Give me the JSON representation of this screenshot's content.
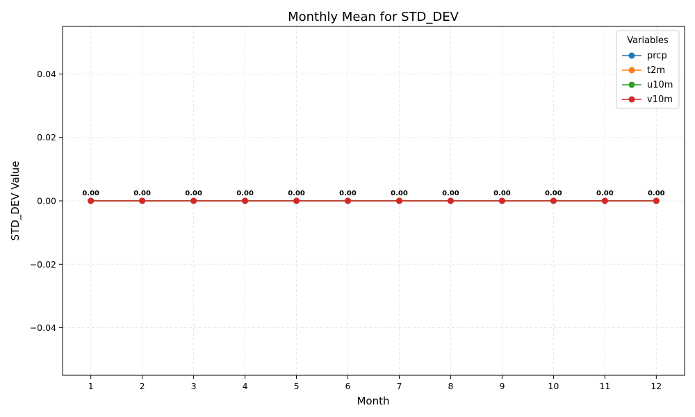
{
  "chart_data": {
    "type": "line",
    "title": "Monthly Mean for STD_DEV",
    "xlabel": "Month",
    "ylabel": "STD_DEV Value",
    "x": [
      1,
      2,
      3,
      4,
      5,
      6,
      7,
      8,
      9,
      10,
      11,
      12
    ],
    "x_tick_labels": [
      "1",
      "2",
      "3",
      "4",
      "5",
      "6",
      "7",
      "8",
      "9",
      "10",
      "11",
      "12"
    ],
    "xlim": [
      0.45,
      12.55
    ],
    "ylim": [
      -0.055,
      0.055
    ],
    "y_ticks": [
      -0.04,
      -0.02,
      0.0,
      0.02,
      0.04
    ],
    "y_tick_labels": [
      "−0.04",
      "−0.02",
      "0.00",
      "0.02",
      "0.04"
    ],
    "grid": true,
    "legend": {
      "title": "Variables",
      "position": "top-right"
    },
    "series": [
      {
        "name": "prcp",
        "color": "#1f77b4",
        "values": [
          0,
          0,
          0,
          0,
          0,
          0,
          0,
          0,
          0,
          0,
          0,
          0
        ]
      },
      {
        "name": "t2m",
        "color": "#ff7f0e",
        "values": [
          0,
          0,
          0,
          0,
          0,
          0,
          0,
          0,
          0,
          0,
          0,
          0
        ]
      },
      {
        "name": "u10m",
        "color": "#2ca02c",
        "values": [
          0,
          0,
          0,
          0,
          0,
          0,
          0,
          0,
          0,
          0,
          0,
          0
        ]
      },
      {
        "name": "v10m",
        "color": "#d62728",
        "values": [
          0,
          0,
          0,
          0,
          0,
          0,
          0,
          0,
          0,
          0,
          0,
          0
        ]
      }
    ],
    "data_labels": [
      "0.00",
      "0.00",
      "0.00",
      "0.00",
      "0.00",
      "0.00",
      "0.00",
      "0.00",
      "0.00",
      "0.00",
      "0.00",
      "0.00"
    ]
  }
}
